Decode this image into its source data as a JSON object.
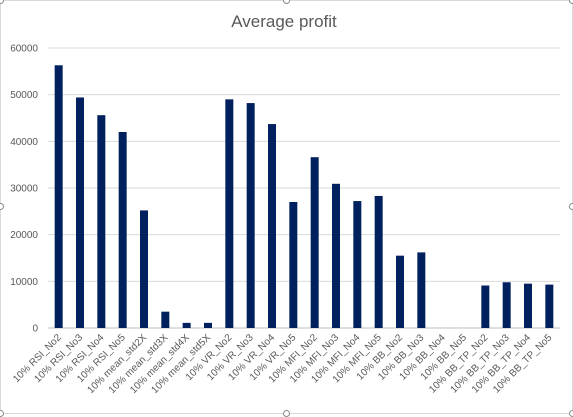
{
  "chart_data": {
    "type": "bar",
    "title": "Average profit",
    "xlabel": "",
    "ylabel": "",
    "ylim": [
      0,
      60000
    ],
    "yticks": [
      0,
      10000,
      20000,
      30000,
      40000,
      50000,
      60000
    ],
    "grid": true,
    "legend": "none",
    "bar_color": "#002060",
    "categories": [
      "10% RSI_No2",
      "10% RSI_No3",
      "10% RSI_No4",
      "10% RSI_No5",
      "10% mean_std2X",
      "10% mean_std3X",
      "10% mean_std4X",
      "10% mean_std5X",
      "10% VR_No2",
      "10% VR_No3",
      "10% VR_No4",
      "10% VR_No5",
      "10% MFI_No2",
      "10% MFI_No3",
      "10% MFI_No4",
      "10% MFI_No5",
      "10% BB_No2",
      "10% BB_No3",
      "10% BB_No4",
      "10% BB_No5",
      "10% BB_TP_No2",
      "10% BB_TP_No3",
      "10% BB_TP_No4",
      "10% BB_TP_No5"
    ],
    "values": [
      56300,
      49400,
      45600,
      42000,
      25200,
      3500,
      1100,
      1100,
      49000,
      48200,
      43700,
      27000,
      36600,
      30900,
      27200,
      28300,
      15500,
      16200,
      0,
      0,
      9100,
      9800,
      9500,
      9300
    ]
  }
}
